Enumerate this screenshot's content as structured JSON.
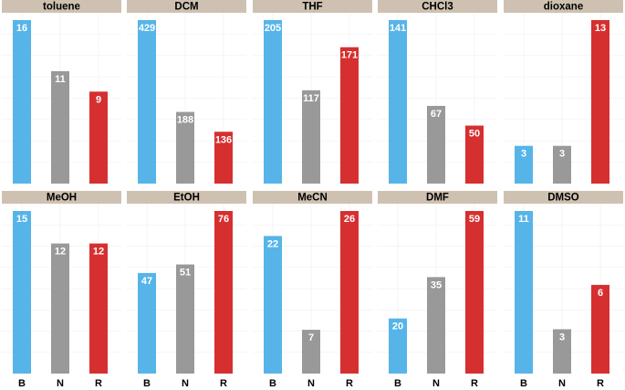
{
  "chart_data": {
    "type": "bar",
    "layout": "facet-grid",
    "categories": [
      "B",
      "N",
      "R"
    ],
    "colors": {
      "B": "#56b4e9",
      "N": "#999999",
      "R": "#d62f2f"
    },
    "strip_color": "#cfc1b1",
    "grid_color": "#ececec",
    "scales": "free_y",
    "panels": [
      {
        "title": "toluene",
        "values": [
          16,
          11,
          9
        ],
        "labels": [
          "16",
          "11",
          "9"
        ]
      },
      {
        "title": "DCM",
        "values": [
          429,
          188,
          136
        ],
        "labels": [
          "429",
          "188",
          "136"
        ]
      },
      {
        "title": "THF",
        "values": [
          205,
          117,
          171
        ],
        "labels": [
          "205",
          "117",
          "171"
        ]
      },
      {
        "title": "CHCl3",
        "values": [
          141,
          67,
          50
        ],
        "labels": [
          "141",
          "67",
          "50"
        ]
      },
      {
        "title": "dioxane",
        "values": [
          3,
          3,
          13
        ],
        "labels": [
          "3",
          "3",
          "13"
        ]
      },
      {
        "title": "MeOH",
        "values": [
          15,
          12,
          12
        ],
        "labels": [
          "15",
          "12",
          "12"
        ]
      },
      {
        "title": "EtOH",
        "values": [
          47,
          51,
          76
        ],
        "labels": [
          "47",
          "51",
          "76"
        ]
      },
      {
        "title": "MeCN",
        "values": [
          22,
          7,
          26
        ],
        "labels": [
          "22",
          "7",
          "26"
        ]
      },
      {
        "title": "DMF",
        "values": [
          20,
          35,
          59
        ],
        "labels": [
          "20",
          "35",
          "59"
        ]
      },
      {
        "title": "DMSO",
        "values": [
          11,
          3,
          6
        ],
        "labels": [
          "11",
          "3",
          "6"
        ]
      }
    ]
  }
}
